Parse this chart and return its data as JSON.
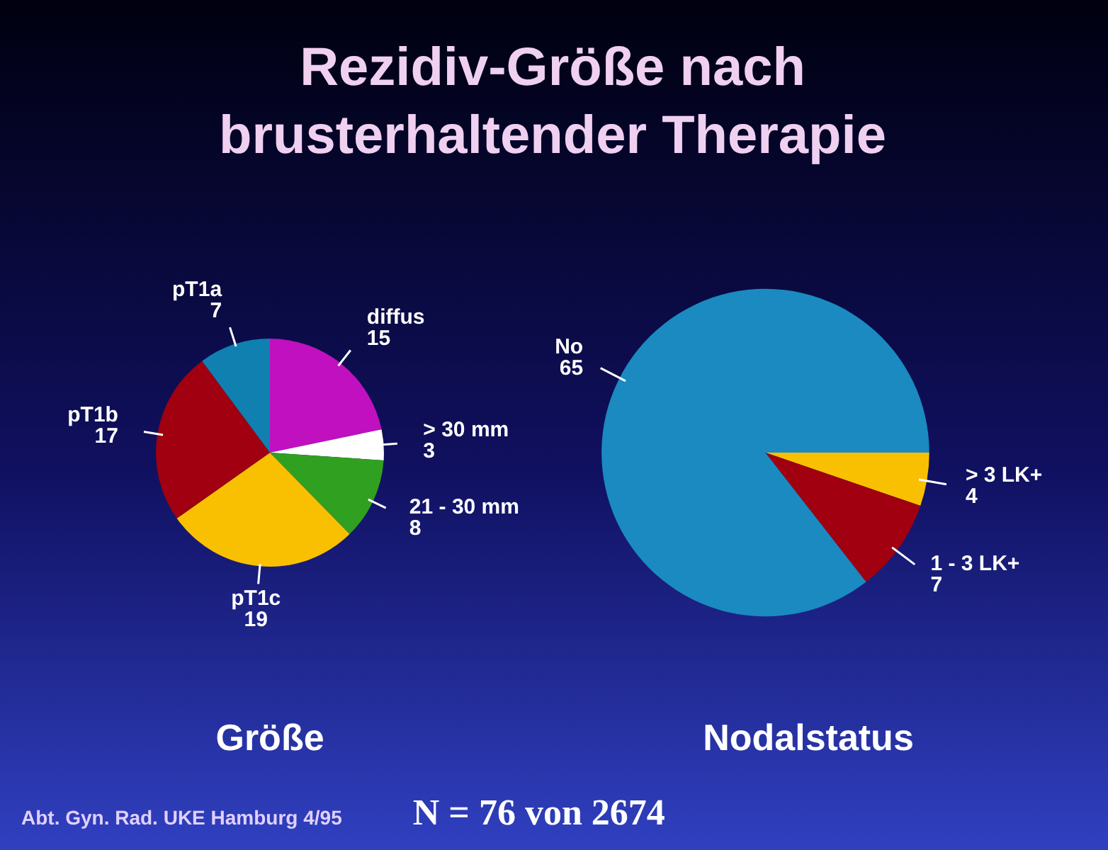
{
  "chart_data": [
    {
      "type": "pie",
      "title": "Rezidiv-Größe nach brusterhaltender Therapie",
      "xlabel": "Größe",
      "categories": [
        "diffus",
        "> 30 mm",
        "21 - 30 mm",
        "pT1c",
        "pT1b",
        "pT1a"
      ],
      "values": [
        15,
        3,
        8,
        19,
        17,
        7
      ],
      "colors": [
        "#c010c0",
        "#ffffff",
        "#30a020",
        "#f8c000",
        "#a00010",
        "#1080b0"
      ],
      "data_labels": true,
      "annotations": [
        "Abt. Gyn. Rad. UKE Hamburg 4/95"
      ]
    },
    {
      "type": "pie",
      "xlabel": "Nodalstatus",
      "categories": [
        "> 3 LK+",
        "1 - 3 LK+",
        "No"
      ],
      "values": [
        4,
        7,
        65
      ],
      "colors": [
        "#f8c000",
        "#a00010",
        "#1a8ac0"
      ],
      "data_labels": true,
      "annotations": [
        "N = 76 von 2674"
      ]
    }
  ]
}
